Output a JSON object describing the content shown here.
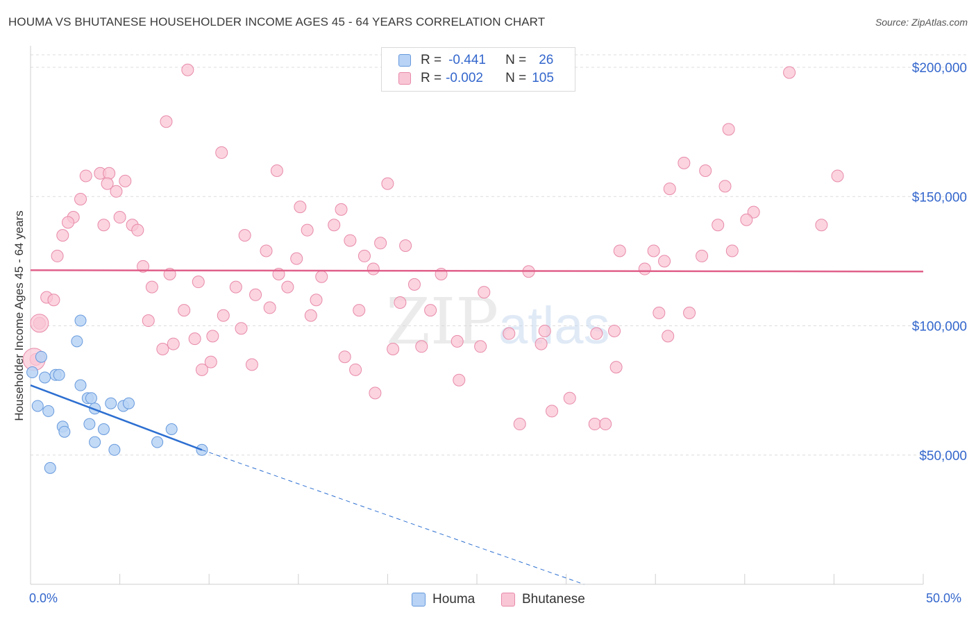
{
  "title": "HOUMA VS BHUTANESE HOUSEHOLDER INCOME AGES 45 - 64 YEARS CORRELATION CHART",
  "source": "Source: ZipAtlas.com",
  "watermark": {
    "zip": "ZIP",
    "atlas": "atlas"
  },
  "legend": {
    "r_label": "R =",
    "n_label": "N =",
    "series": [
      {
        "r": "-0.441",
        "n": "26"
      },
      {
        "r": "-0.002",
        "n": "105"
      }
    ]
  },
  "colors": {
    "houma_fill": "#b8d3f5",
    "houma_stroke": "#6699dd",
    "houma_line": "#2d6fd1",
    "bhutanese_fill": "#f9c6d6",
    "bhutanese_stroke": "#e88aa8",
    "bhutanese_line": "#e0608a",
    "axis_text": "#3366cc",
    "grid": "#dcdcdc"
  },
  "chart_data": {
    "type": "scatter",
    "title": "HOUMA VS BHUTANESE HOUSEHOLDER INCOME AGES 45 - 64 YEARS CORRELATION CHART",
    "xlabel": "",
    "ylabel": "Householder Income Ages 45 - 64 years",
    "xlim": [
      0,
      50
    ],
    "ylim": [
      0,
      205000
    ],
    "x_tick_labels": [
      "0.0%",
      "50.0%"
    ],
    "y_ticks": [
      50000,
      100000,
      150000,
      200000
    ],
    "y_tick_labels": [
      "$50,000",
      "$100,000",
      "$150,000",
      "$200,000"
    ],
    "series": [
      {
        "name": "Houma",
        "points": [
          [
            0.1,
            82000
          ],
          [
            0.6,
            88000
          ],
          [
            0.8,
            80000
          ],
          [
            1.4,
            81000
          ],
          [
            1.6,
            81000
          ],
          [
            2.8,
            102000
          ],
          [
            2.6,
            94000
          ],
          [
            0.4,
            69000
          ],
          [
            1.0,
            67000
          ],
          [
            2.8,
            77000
          ],
          [
            3.2,
            72000
          ],
          [
            3.4,
            72000
          ],
          [
            3.6,
            68000
          ],
          [
            4.5,
            70000
          ],
          [
            5.2,
            69000
          ],
          [
            5.5,
            70000
          ],
          [
            1.8,
            61000
          ],
          [
            1.9,
            59000
          ],
          [
            3.3,
            62000
          ],
          [
            4.1,
            60000
          ],
          [
            7.9,
            60000
          ],
          [
            3.6,
            55000
          ],
          [
            4.7,
            52000
          ],
          [
            7.1,
            55000
          ],
          [
            9.6,
            52000
          ],
          [
            1.1,
            45000
          ]
        ],
        "trend": {
          "x1": 0.0,
          "y1": 77000,
          "x2": 9.6,
          "y2": 52000,
          "dash_x2": 31.0,
          "dash_y2": 0
        }
      },
      {
        "name": "Bhutanese",
        "points": [
          [
            8.8,
            199000
          ],
          [
            42.5,
            198000
          ],
          [
            7.6,
            179000
          ],
          [
            39.1,
            176000
          ],
          [
            10.7,
            167000
          ],
          [
            36.6,
            163000
          ],
          [
            37.8,
            160000
          ],
          [
            3.1,
            158000
          ],
          [
            3.9,
            159000
          ],
          [
            4.4,
            159000
          ],
          [
            13.8,
            160000
          ],
          [
            45.2,
            158000
          ],
          [
            5.3,
            156000
          ],
          [
            20.0,
            155000
          ],
          [
            4.3,
            155000
          ],
          [
            35.8,
            153000
          ],
          [
            38.9,
            154000
          ],
          [
            4.8,
            152000
          ],
          [
            2.8,
            149000
          ],
          [
            15.1,
            146000
          ],
          [
            17.4,
            145000
          ],
          [
            40.5,
            144000
          ],
          [
            2.4,
            142000
          ],
          [
            5.0,
            142000
          ],
          [
            2.1,
            140000
          ],
          [
            4.1,
            139000
          ],
          [
            5.7,
            139000
          ],
          [
            17.0,
            139000
          ],
          [
            15.5,
            137000
          ],
          [
            6.0,
            137000
          ],
          [
            38.5,
            139000
          ],
          [
            40.1,
            141000
          ],
          [
            44.3,
            139000
          ],
          [
            1.8,
            135000
          ],
          [
            12.0,
            135000
          ],
          [
            17.9,
            133000
          ],
          [
            19.6,
            132000
          ],
          [
            21.0,
            131000
          ],
          [
            13.2,
            129000
          ],
          [
            18.7,
            127000
          ],
          [
            33.0,
            129000
          ],
          [
            34.9,
            129000
          ],
          [
            39.3,
            129000
          ],
          [
            1.5,
            127000
          ],
          [
            14.9,
            126000
          ],
          [
            37.6,
            127000
          ],
          [
            6.3,
            123000
          ],
          [
            19.2,
            122000
          ],
          [
            35.5,
            125000
          ],
          [
            34.4,
            122000
          ],
          [
            7.8,
            120000
          ],
          [
            13.9,
            120000
          ],
          [
            23.0,
            120000
          ],
          [
            27.9,
            121000
          ],
          [
            16.3,
            119000
          ],
          [
            9.4,
            117000
          ],
          [
            6.8,
            115000
          ],
          [
            11.5,
            115000
          ],
          [
            14.4,
            115000
          ],
          [
            21.5,
            116000
          ],
          [
            25.4,
            113000
          ],
          [
            12.6,
            112000
          ],
          [
            16.0,
            110000
          ],
          [
            0.9,
            111000
          ],
          [
            1.3,
            110000
          ],
          [
            20.7,
            109000
          ],
          [
            8.6,
            106000
          ],
          [
            10.8,
            104000
          ],
          [
            13.4,
            107000
          ],
          [
            15.7,
            104000
          ],
          [
            18.4,
            106000
          ],
          [
            22.4,
            106000
          ],
          [
            35.2,
            105000
          ],
          [
            36.9,
            105000
          ],
          [
            0.5,
            101000
          ],
          [
            6.6,
            102000
          ],
          [
            11.8,
            99000
          ],
          [
            26.8,
            97000
          ],
          [
            28.8,
            98000
          ],
          [
            31.7,
            97000
          ],
          [
            32.7,
            98000
          ],
          [
            35.7,
            96000
          ],
          [
            10.2,
            96000
          ],
          [
            9.2,
            95000
          ],
          [
            8.0,
            93000
          ],
          [
            7.4,
            91000
          ],
          [
            20.3,
            91000
          ],
          [
            21.9,
            92000
          ],
          [
            23.9,
            94000
          ],
          [
            25.2,
            92000
          ],
          [
            28.6,
            93000
          ],
          [
            17.6,
            88000
          ],
          [
            10.1,
            86000
          ],
          [
            12.4,
            85000
          ],
          [
            0.3,
            87000
          ],
          [
            9.6,
            83000
          ],
          [
            18.2,
            83000
          ],
          [
            32.8,
            84000
          ],
          [
            24.0,
            79000
          ],
          [
            19.3,
            74000
          ],
          [
            30.2,
            72000
          ],
          [
            29.2,
            67000
          ],
          [
            27.4,
            62000
          ],
          [
            31.6,
            62000
          ],
          [
            32.2,
            62000
          ]
        ],
        "trend": {
          "x1": 0.0,
          "y1": 121500,
          "x2": 50.0,
          "y2": 121000
        }
      }
    ]
  },
  "bottom_legend": {
    "items": [
      {
        "label": "Houma"
      },
      {
        "label": "Bhutanese"
      }
    ]
  }
}
